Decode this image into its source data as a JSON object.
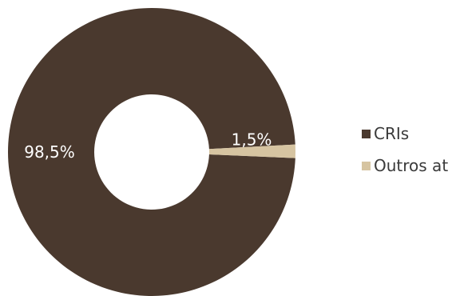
{
  "chart_data": {
    "type": "pie",
    "donut": true,
    "categories": [
      "CRIs",
      "Outros at"
    ],
    "values": [
      98.5,
      1.5
    ],
    "data_labels": [
      "98,5%",
      "1,5%"
    ],
    "colors": [
      "#4a392e",
      "#d6c4a1"
    ],
    "legend_position": "right",
    "title": ""
  }
}
